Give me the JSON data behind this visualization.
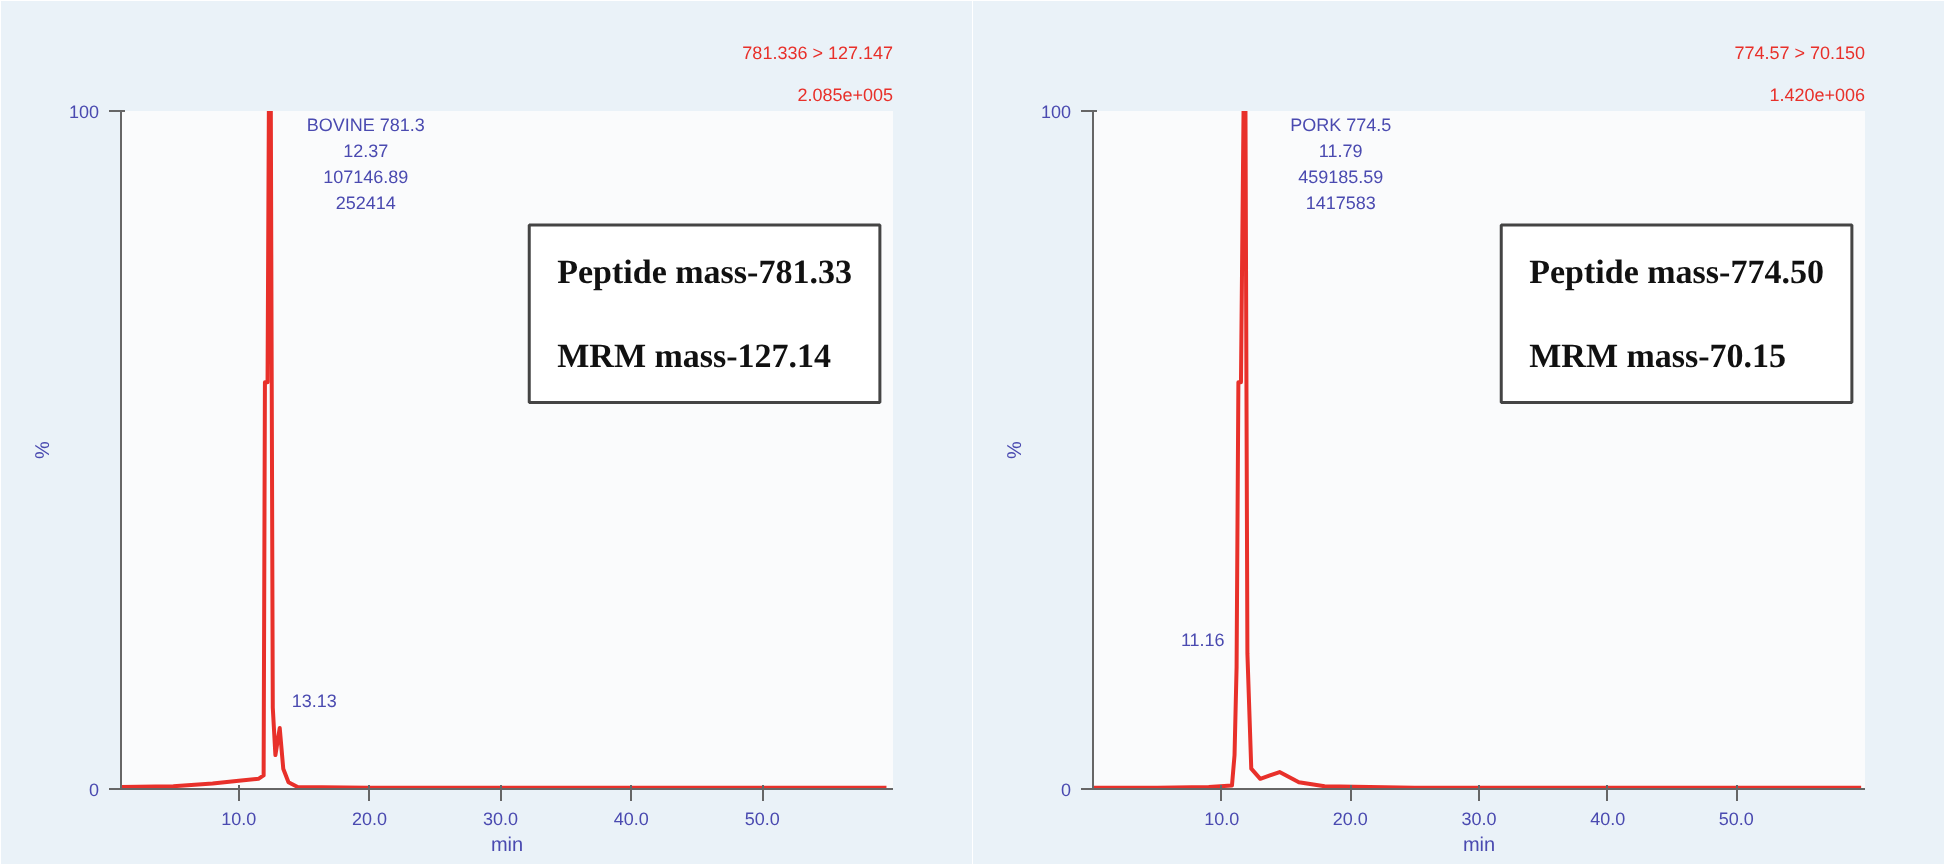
{
  "chart_data": [
    {
      "type": "line",
      "title": "781.336 > 127.147",
      "subtitle": "2.085e+005",
      "xlabel": "min",
      "ylabel": "%",
      "x": [
        1,
        5,
        8,
        10,
        11.5,
        11.9,
        12.0,
        12.2,
        12.3,
        12.45,
        12.6,
        12.8,
        13.13,
        13.4,
        13.8,
        14.5,
        20,
        30,
        40,
        50,
        59.5
      ],
      "series": [
        {
          "color": "#e8302a",
          "values": [
            0.3,
            0.4,
            0.8,
            1.2,
            1.5,
            2,
            60,
            60,
            100,
            100,
            12,
            5,
            9,
            3,
            1,
            0.3,
            0.2,
            0.2,
            0.2,
            0.2,
            0.2
          ]
        }
      ],
      "xlim": [
        1,
        60
      ],
      "ylim": [
        0,
        100
      ],
      "xticks": [
        {
          "value": 10,
          "label": "10.0"
        },
        {
          "value": 20,
          "label": "20.0"
        },
        {
          "value": 30,
          "label": "30.0"
        },
        {
          "value": 40,
          "label": "40.0"
        },
        {
          "value": 50,
          "label": "50.0"
        }
      ],
      "yticks": [
        0,
        100
      ],
      "grid": false,
      "marker": "none",
      "line_style": "solid",
      "annotations": [
        "Peptide mass-781.33",
        "MRM mass-127.14",
        {
          "text": "BOVINE 781.3\n12.37\n107146.89\n252414",
          "x": 12.37,
          "y": 100
        },
        {
          "text": "13.13",
          "x": 13.13,
          "y": 9
        }
      ]
    },
    {
      "type": "line",
      "title": "774.57 > 70.150",
      "subtitle": "1.420e+006",
      "xlabel": "min",
      "ylabel": "%",
      "x": [
        0,
        5,
        9,
        10.8,
        11.0,
        11.16,
        11.3,
        11.5,
        11.7,
        11.85,
        12.0,
        12.3,
        13,
        14.5,
        16,
        18,
        25,
        59.7
      ],
      "series": [
        {
          "color": "#e8302a",
          "values": [
            0.2,
            0.2,
            0.3,
            0.5,
            5,
            18,
            60,
            60,
            100,
            100,
            20,
            3,
            1.5,
            2.5,
            1,
            0.4,
            0.2,
            0.2
          ]
        }
      ],
      "xlim": [
        0,
        60
      ],
      "ylim": [
        0,
        100
      ],
      "xticks": [
        {
          "value": 10,
          "label": "10.0"
        },
        {
          "value": 20,
          "label": "20.0"
        },
        {
          "value": 30,
          "label": "30.0"
        },
        {
          "value": 40,
          "label": "40.0"
        },
        {
          "value": 50,
          "label": "50.0"
        }
      ],
      "yticks": [
        0,
        100
      ],
      "grid": false,
      "marker": "none",
      "line_style": "solid",
      "annotations": [
        "Peptide mass-774.50",
        "MRM mass-70.15",
        {
          "text": "PORK 774.5\n11.79\n459185.59\n1417583",
          "x": 11.79,
          "y": 100
        },
        {
          "text": "11.16",
          "x": 11.16,
          "y": 18
        }
      ]
    }
  ]
}
